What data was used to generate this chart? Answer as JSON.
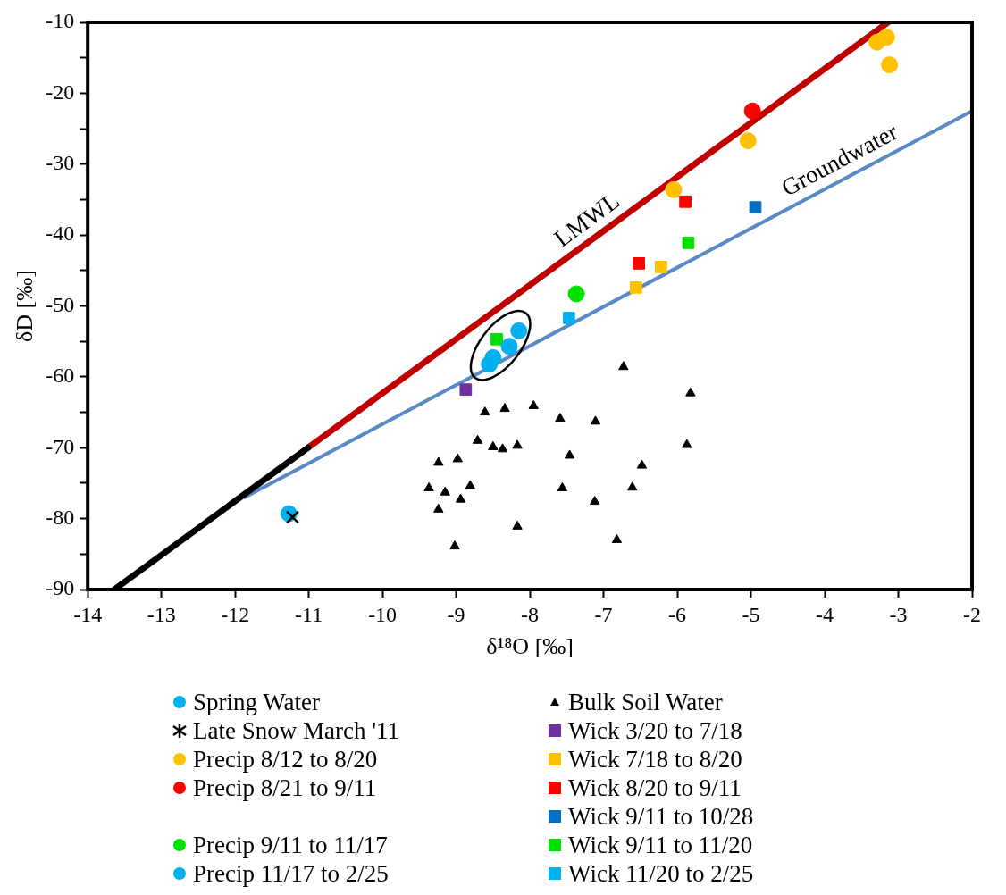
{
  "chart_data": {
    "type": "scatter",
    "xlabel": "δ¹⁸O [‰]",
    "ylabel": "δD [‰]",
    "xlim": [
      -14,
      -2
    ],
    "xticks": [
      -14,
      -13,
      -12,
      -11,
      -10,
      -9,
      -8,
      -7,
      -6,
      -5,
      -4,
      -3,
      -2
    ],
    "ylim": [
      -90,
      -10
    ],
    "yticks": [
      -90,
      {
        "value": -85,
        "label": null
      },
      -80,
      {
        "value": -75,
        "label": null
      },
      -70,
      {
        "value": -65,
        "label": null
      },
      -60,
      {
        "value": -55,
        "label": null
      },
      -50,
      {
        "value": -45,
        "label": null
      },
      -40,
      {
        "value": -35,
        "label": null
      },
      -30,
      {
        "value": -25,
        "label": null
      },
      -20,
      {
        "value": -15,
        "label": null
      },
      -10
    ],
    "grid": false,
    "legend": "bottom",
    "series": [
      {
        "name": "Spring Water",
        "color": "#00b0f0",
        "marker": "circle",
        "x": [
          -8.15,
          -8.28,
          -8.5,
          -8.55
        ],
        "values": [
          -53.5,
          -55.7,
          -57.3,
          -58.2
        ]
      },
      {
        "name": "Late Snow March '11",
        "color": "#000000",
        "marker": "cross",
        "x": [
          -11.22
        ],
        "values": [
          -79.8
        ]
      },
      {
        "name": "Precip 8/12 to 8/20",
        "color": "#ffc000",
        "marker": "circle",
        "x": [
          -6.05,
          -5.04,
          -3.29,
          -3.16,
          -3.12
        ],
        "values": [
          -33.6,
          -26.7,
          -12.8,
          -12.1,
          -16.0
        ]
      },
      {
        "name": "Precip 8/21 to 9/11",
        "color": "#ff0000",
        "marker": "circle",
        "x": [
          -4.98
        ],
        "values": [
          -22.5
        ]
      },
      {
        "name": "Precip 9/11 to 11/17",
        "color": "#00e000",
        "marker": "circle",
        "x": [
          -7.37
        ],
        "values": [
          -48.3
        ]
      },
      {
        "name": "Precip 11/17 to 2/25",
        "color": "#00b0f0",
        "marker": "circle",
        "x": [
          -11.27
        ],
        "values": [
          -79.3
        ]
      },
      {
        "name": "Bulk Soil Water",
        "color": "#000000",
        "marker": "triangle",
        "x": [
          -6.73,
          -5.82,
          -8.61,
          -8.34,
          -7.95,
          -7.59,
          -7.11,
          -8.71,
          -8.5,
          -8.37,
          -8.17,
          -5.87,
          -7.46,
          -9.24,
          -8.98,
          -6.48,
          -9.37,
          -9.15,
          -8.81,
          -8.94,
          -9.24,
          -7.56,
          -6.61,
          -7.12,
          -8.17,
          -6.82,
          -9.02
        ],
        "values": [
          -58.6,
          -62.3,
          -65.0,
          -64.5,
          -64.1,
          -65.9,
          -66.3,
          -69.0,
          -69.9,
          -70.2,
          -69.7,
          -69.6,
          -71.1,
          -72.1,
          -71.6,
          -72.5,
          -75.7,
          -76.3,
          -75.4,
          -77.3,
          -78.7,
          -75.7,
          -75.6,
          -77.6,
          -81.1,
          -83.0,
          -83.9
        ]
      },
      {
        "name": "Wick 3/20 to 7/18",
        "color": "#7030a0",
        "marker": "square",
        "x": [
          -8.87
        ],
        "values": [
          -61.8
        ]
      },
      {
        "name": "Wick 7/18 to 8/20",
        "color": "#ffc000",
        "marker": "square",
        "x": [
          -6.56,
          -6.22
        ],
        "values": [
          -47.4,
          -44.5
        ]
      },
      {
        "name": "Wick 8/20 to 9/11",
        "color": "#ff0000",
        "marker": "square",
        "x": [
          -6.52,
          -5.89
        ],
        "values": [
          -44.0,
          -35.3
        ]
      },
      {
        "name": "Wick 9/11 to 10/28",
        "color": "#0070c0",
        "marker": "square",
        "x": [
          -4.94
        ],
        "values": [
          -36.1
        ]
      },
      {
        "name": "Wick 9/11 to 11/20",
        "color": "#00e000",
        "marker": "square",
        "x": [
          -8.45,
          -5.85
        ],
        "values": [
          -54.7,
          -41.1
        ]
      },
      {
        "name": "Wick 11/20 to 2/25",
        "color": "#00b0f0",
        "marker": "square",
        "x": [
          -7.47
        ],
        "values": [
          -51.7
        ]
      },
      {
        "type": "line",
        "color": "#000000",
        "x": [
          -13.64,
          -11.01
        ],
        "values": [
          -90,
          -70.0
        ]
      },
      {
        "type": "line",
        "name": "Groundwater",
        "color": "#5a8ac6",
        "x": [
          -11.87,
          -2.0
        ],
        "values": [
          -77.0,
          -22.5
        ]
      },
      {
        "type": "line",
        "name": "LMWL",
        "color": "#c00000",
        "x": [
          -11.01,
          -3.14
        ],
        "values": [
          -70.0,
          -10.0
        ]
      }
    ]
  }
}
